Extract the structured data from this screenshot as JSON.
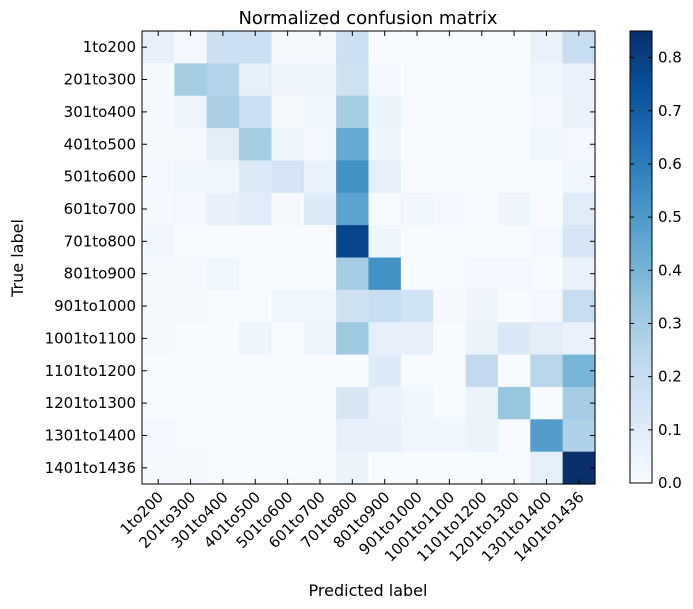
{
  "chart_data": {
    "type": "heatmap",
    "title": "Normalized confusion matrix",
    "xlabel": "Predicted label",
    "ylabel": "True label",
    "labels": [
      "1to200",
      "201to300",
      "301to400",
      "401to500",
      "501to600",
      "601to700",
      "701to800",
      "801to900",
      "901to1000",
      "1001to1100",
      "1101to1200",
      "1201to1300",
      "1301to1400",
      "1401to1436"
    ],
    "values": [
      [
        0.07,
        0.02,
        0.18,
        0.18,
        0.01,
        0.01,
        0.18,
        0.0,
        0.0,
        0.0,
        0.0,
        0.0,
        0.06,
        0.2
      ],
      [
        0.01,
        0.3,
        0.26,
        0.08,
        0.04,
        0.04,
        0.17,
        0.02,
        0.0,
        0.0,
        0.0,
        0.0,
        0.03,
        0.06
      ],
      [
        0.01,
        0.04,
        0.28,
        0.18,
        0.01,
        0.03,
        0.3,
        0.05,
        0.0,
        0.0,
        0.0,
        0.0,
        0.02,
        0.06
      ],
      [
        0.01,
        0.01,
        0.09,
        0.3,
        0.04,
        0.02,
        0.44,
        0.04,
        0.0,
        0.0,
        0.0,
        0.0,
        0.03,
        0.02
      ],
      [
        0.02,
        0.03,
        0.03,
        0.11,
        0.15,
        0.06,
        0.53,
        0.07,
        0.0,
        0.0,
        0.0,
        0.0,
        0.0,
        0.03
      ],
      [
        0.01,
        0.02,
        0.07,
        0.1,
        0.01,
        0.11,
        0.47,
        0.0,
        0.03,
        0.02,
        0.0,
        0.04,
        0.0,
        0.1
      ],
      [
        0.03,
        0.0,
        0.0,
        0.0,
        0.0,
        0.0,
        0.78,
        0.04,
        0.0,
        0.0,
        0.0,
        0.0,
        0.02,
        0.14
      ],
      [
        0.01,
        0.01,
        0.03,
        0.0,
        0.0,
        0.0,
        0.3,
        0.53,
        0.0,
        0.0,
        0.02,
        0.02,
        0.0,
        0.06
      ],
      [
        0.01,
        0.01,
        0.0,
        0.0,
        0.03,
        0.03,
        0.17,
        0.2,
        0.16,
        0.01,
        0.04,
        0.0,
        0.02,
        0.2
      ],
      [
        0.01,
        0.0,
        0.0,
        0.04,
        0.0,
        0.04,
        0.32,
        0.07,
        0.07,
        0.0,
        0.05,
        0.12,
        0.09,
        0.06
      ],
      [
        0.0,
        0.0,
        0.0,
        0.0,
        0.0,
        0.0,
        0.0,
        0.11,
        0.0,
        0.0,
        0.22,
        0.0,
        0.25,
        0.4
      ],
      [
        0.0,
        0.0,
        0.0,
        0.0,
        0.0,
        0.0,
        0.13,
        0.06,
        0.03,
        0.0,
        0.05,
        0.33,
        0.0,
        0.3
      ],
      [
        0.02,
        0.0,
        0.0,
        0.0,
        0.0,
        0.0,
        0.07,
        0.07,
        0.03,
        0.03,
        0.05,
        0.0,
        0.49,
        0.27
      ],
      [
        0.01,
        0.01,
        0.0,
        0.0,
        0.0,
        0.0,
        0.05,
        0.0,
        0.0,
        0.0,
        0.0,
        0.0,
        0.08,
        0.85
      ]
    ],
    "colorbar": {
      "min": 0.0,
      "max": 0.85,
      "ticks": [
        "0.0",
        "0.1",
        "0.2",
        "0.3",
        "0.4",
        "0.5",
        "0.6",
        "0.7",
        "0.8"
      ]
    },
    "colormap": [
      "#f7fbff",
      "#deebf7",
      "#c6dbef",
      "#9ecae1",
      "#6baed6",
      "#4292c6",
      "#2171b5",
      "#08519c",
      "#08306b"
    ]
  }
}
